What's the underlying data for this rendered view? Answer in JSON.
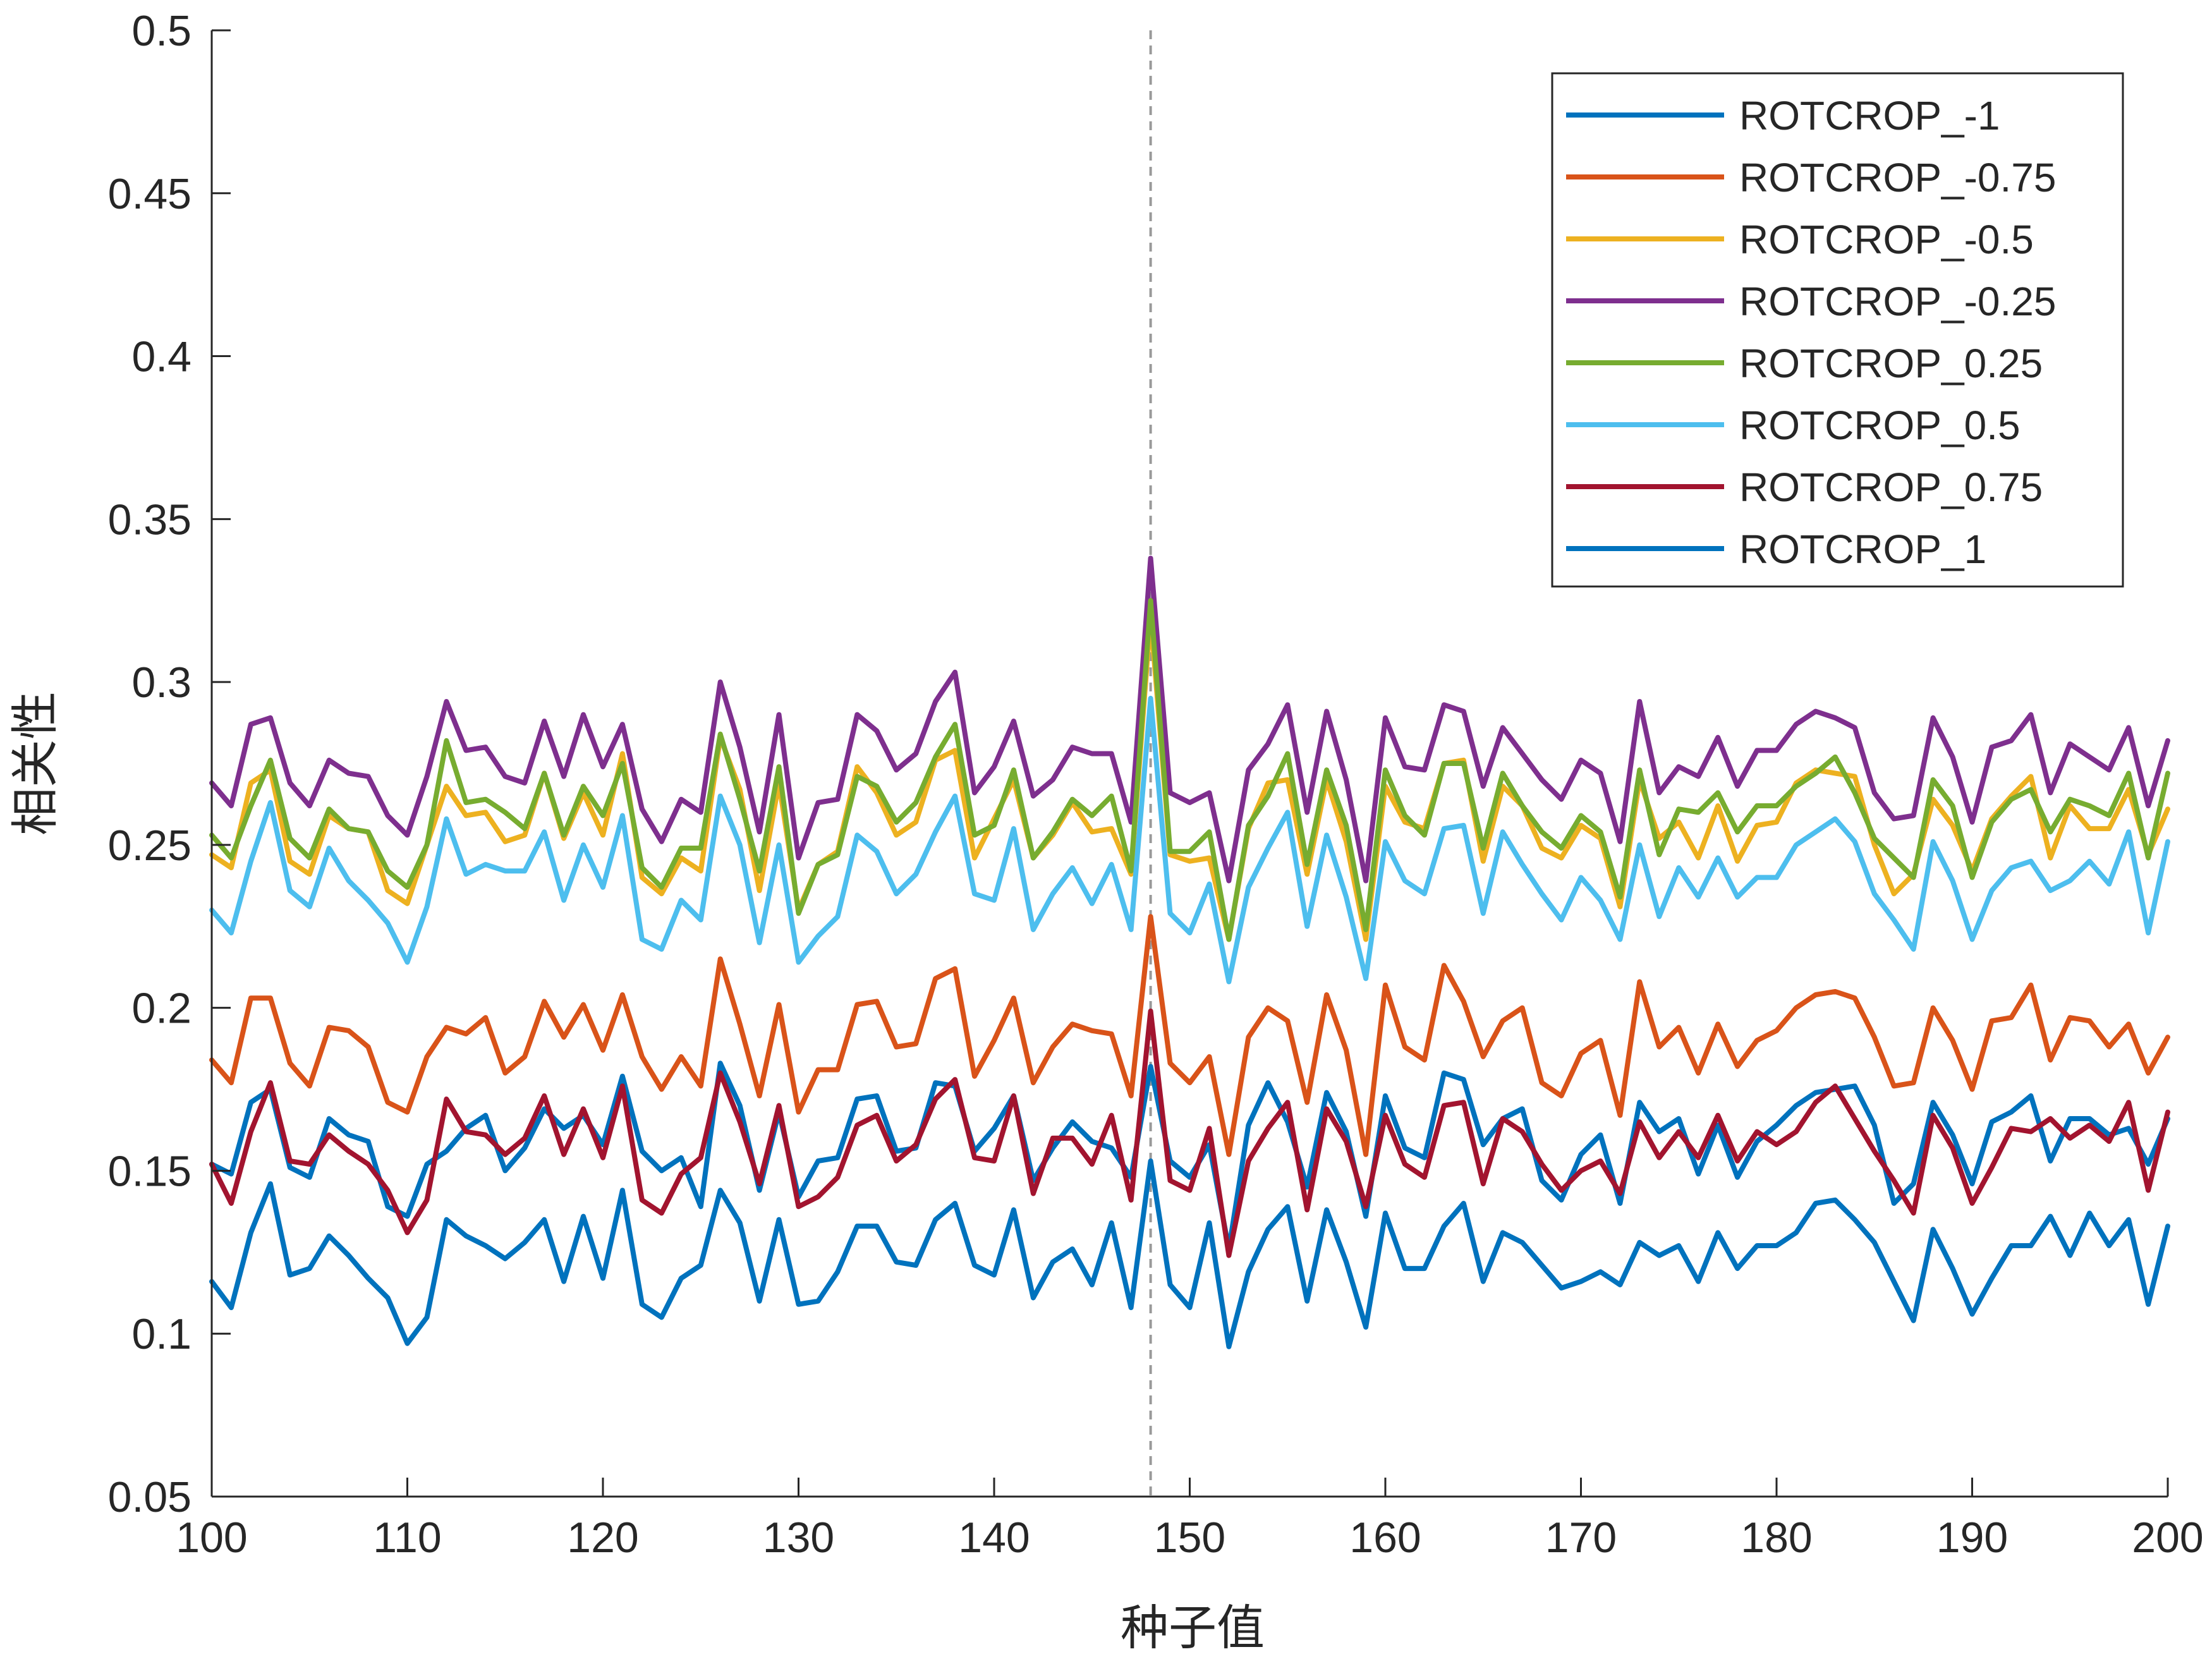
{
  "chart_data": {
    "type": "line",
    "title": "",
    "xlabel": "种子值",
    "ylabel": "相关性",
    "xlim": [
      100,
      200
    ],
    "ylim": [
      0.05,
      0.5
    ],
    "xticks": [
      100,
      110,
      120,
      130,
      140,
      150,
      160,
      170,
      180,
      190,
      200
    ],
    "xtick_labels": [
      "100",
      "110",
      "120",
      "130",
      "140",
      "150",
      "160",
      "170",
      "180",
      "190",
      "200"
    ],
    "yticks": [
      0.05,
      0.1,
      0.15,
      0.2,
      0.25,
      0.3,
      0.35,
      0.4,
      0.45,
      0.5
    ],
    "ytick_labels": [
      "0.05",
      "0.1",
      "0.15",
      "0.2",
      "0.25",
      "0.3",
      "0.35",
      "0.4",
      "0.45",
      "0.5"
    ],
    "grid": false,
    "legend_position": "top-right",
    "reference_line": {
      "x": 148,
      "style": "dashed",
      "color": "#999999"
    },
    "x": [
      100,
      101,
      102,
      103,
      104,
      105,
      106,
      107,
      108,
      109,
      110,
      111,
      112,
      113,
      114,
      115,
      116,
      117,
      118,
      119,
      120,
      121,
      122,
      123,
      124,
      125,
      126,
      127,
      128,
      129,
      130,
      131,
      132,
      133,
      134,
      135,
      136,
      137,
      138,
      139,
      140,
      141,
      142,
      143,
      144,
      145,
      146,
      147,
      148,
      149,
      150,
      151,
      152,
      153,
      154,
      155,
      156,
      157,
      158,
      159,
      160,
      161,
      162,
      163,
      164,
      165,
      166,
      167,
      168,
      169,
      170,
      171,
      172,
      173,
      174,
      175,
      176,
      177,
      178,
      179,
      180,
      181,
      182,
      183,
      184,
      185,
      186,
      187,
      188,
      189,
      190,
      191,
      192,
      193,
      194,
      195,
      196,
      197,
      198,
      199,
      200
    ],
    "series": [
      {
        "name": "ROTCROP_-1",
        "color": "#0072BD",
        "values": [
          0.152,
          0.149,
          0.171,
          0.175,
          0.151,
          0.148,
          0.166,
          0.161,
          0.159,
          0.139,
          0.136,
          0.152,
          0.156,
          0.163,
          0.167,
          0.15,
          0.157,
          0.169,
          0.163,
          0.167,
          0.158,
          0.179,
          0.156,
          0.15,
          0.154,
          0.139,
          0.183,
          0.17,
          0.144,
          0.168,
          0.142,
          0.153,
          0.154,
          0.172,
          0.173,
          0.156,
          0.157,
          0.177,
          0.176,
          0.156,
          0.163,
          0.173,
          0.147,
          0.157,
          0.165,
          0.159,
          0.157,
          0.148,
          0.182,
          0.153,
          0.148,
          0.158,
          0.126,
          0.164,
          0.177,
          0.165,
          0.145,
          0.174,
          0.162,
          0.136,
          0.173,
          0.157,
          0.154,
          0.18,
          0.178,
          0.158,
          0.166,
          0.169,
          0.147,
          0.141,
          0.155,
          0.161,
          0.14,
          0.171,
          0.162,
          0.166,
          0.149,
          0.164,
          0.148,
          0.159,
          0.164,
          0.17,
          0.174,
          0.175,
          0.176,
          0.164,
          0.14,
          0.146,
          0.171,
          0.161,
          0.146,
          0.165,
          0.168,
          0.173,
          0.153,
          0.166,
          0.166,
          0.161,
          0.163,
          0.152,
          0.166
        ]
      },
      {
        "name": "ROTCROP_-0.75",
        "color": "#D95319",
        "values": [
          0.184,
          0.177,
          0.203,
          0.203,
          0.183,
          0.176,
          0.194,
          0.193,
          0.188,
          0.171,
          0.168,
          0.185,
          0.194,
          0.192,
          0.197,
          0.18,
          0.185,
          0.202,
          0.191,
          0.201,
          0.187,
          0.204,
          0.185,
          0.175,
          0.185,
          0.176,
          0.215,
          0.195,
          0.173,
          0.201,
          0.168,
          0.181,
          0.181,
          0.201,
          0.202,
          0.188,
          0.189,
          0.209,
          0.212,
          0.179,
          0.19,
          0.203,
          0.177,
          0.188,
          0.195,
          0.193,
          0.192,
          0.173,
          0.228,
          0.183,
          0.177,
          0.185,
          0.155,
          0.191,
          0.2,
          0.196,
          0.171,
          0.204,
          0.187,
          0.155,
          0.207,
          0.188,
          0.184,
          0.213,
          0.202,
          0.185,
          0.196,
          0.2,
          0.177,
          0.173,
          0.186,
          0.19,
          0.167,
          0.208,
          0.188,
          0.194,
          0.18,
          0.195,
          0.182,
          0.19,
          0.193,
          0.2,
          0.204,
          0.205,
          0.203,
          0.191,
          0.176,
          0.177,
          0.2,
          0.19,
          0.175,
          0.196,
          0.197,
          0.207,
          0.184,
          0.197,
          0.196,
          0.188,
          0.195,
          0.18,
          0.191
        ]
      },
      {
        "name": "ROTCROP_-0.5",
        "color": "#EDB120",
        "values": [
          0.247,
          0.243,
          0.269,
          0.273,
          0.245,
          0.241,
          0.259,
          0.255,
          0.254,
          0.236,
          0.232,
          0.25,
          0.268,
          0.259,
          0.26,
          0.251,
          0.253,
          0.272,
          0.252,
          0.266,
          0.253,
          0.278,
          0.24,
          0.235,
          0.246,
          0.242,
          0.283,
          0.267,
          0.236,
          0.269,
          0.23,
          0.244,
          0.248,
          0.274,
          0.266,
          0.253,
          0.257,
          0.276,
          0.279,
          0.246,
          0.258,
          0.27,
          0.246,
          0.253,
          0.263,
          0.254,
          0.255,
          0.241,
          0.32,
          0.247,
          0.245,
          0.246,
          0.221,
          0.255,
          0.269,
          0.27,
          0.241,
          0.27,
          0.251,
          0.221,
          0.268,
          0.257,
          0.255,
          0.275,
          0.276,
          0.245,
          0.268,
          0.262,
          0.249,
          0.246,
          0.256,
          0.252,
          0.231,
          0.27,
          0.252,
          0.257,
          0.246,
          0.262,
          0.245,
          0.256,
          0.257,
          0.269,
          0.273,
          0.272,
          0.271,
          0.25,
          0.235,
          0.241,
          0.264,
          0.256,
          0.242,
          0.258,
          0.265,
          0.271,
          0.246,
          0.262,
          0.255,
          0.255,
          0.267,
          0.247,
          0.261
        ]
      },
      {
        "name": "ROTCROP_-0.25",
        "color": "#7E2F8E",
        "values": [
          0.269,
          0.262,
          0.287,
          0.289,
          0.269,
          0.262,
          0.276,
          0.272,
          0.271,
          0.259,
          0.253,
          0.271,
          0.294,
          0.279,
          0.28,
          0.271,
          0.269,
          0.288,
          0.271,
          0.29,
          0.274,
          0.287,
          0.261,
          0.251,
          0.264,
          0.26,
          0.3,
          0.28,
          0.254,
          0.29,
          0.246,
          0.263,
          0.264,
          0.29,
          0.285,
          0.273,
          0.278,
          0.294,
          0.303,
          0.266,
          0.274,
          0.288,
          0.265,
          0.27,
          0.28,
          0.278,
          0.278,
          0.257,
          0.338,
          0.266,
          0.263,
          0.266,
          0.239,
          0.273,
          0.281,
          0.293,
          0.26,
          0.291,
          0.27,
          0.239,
          0.289,
          0.274,
          0.273,
          0.293,
          0.291,
          0.268,
          0.286,
          0.278,
          0.27,
          0.264,
          0.276,
          0.272,
          0.251,
          0.294,
          0.266,
          0.274,
          0.271,
          0.283,
          0.268,
          0.279,
          0.279,
          0.287,
          0.291,
          0.289,
          0.286,
          0.266,
          0.258,
          0.259,
          0.289,
          0.277,
          0.257,
          0.28,
          0.282,
          0.29,
          0.266,
          0.281,
          0.277,
          0.273,
          0.286,
          0.262,
          0.282
        ]
      },
      {
        "name": "ROTCROP_0.25",
        "color": "#77AC30",
        "values": [
          0.253,
          0.246,
          0.262,
          0.276,
          0.252,
          0.246,
          0.261,
          0.255,
          0.254,
          0.242,
          0.237,
          0.25,
          0.282,
          0.263,
          0.264,
          0.26,
          0.255,
          0.272,
          0.253,
          0.268,
          0.259,
          0.275,
          0.243,
          0.237,
          0.249,
          0.249,
          0.284,
          0.264,
          0.242,
          0.274,
          0.229,
          0.244,
          0.247,
          0.271,
          0.268,
          0.257,
          0.263,
          0.277,
          0.287,
          0.253,
          0.256,
          0.273,
          0.246,
          0.254,
          0.264,
          0.259,
          0.265,
          0.242,
          0.325,
          0.248,
          0.248,
          0.254,
          0.221,
          0.256,
          0.265,
          0.278,
          0.244,
          0.273,
          0.256,
          0.224,
          0.273,
          0.259,
          0.253,
          0.275,
          0.275,
          0.249,
          0.272,
          0.262,
          0.254,
          0.249,
          0.259,
          0.254,
          0.234,
          0.273,
          0.247,
          0.261,
          0.26,
          0.266,
          0.254,
          0.262,
          0.262,
          0.268,
          0.272,
          0.277,
          0.266,
          0.252,
          0.246,
          0.24,
          0.27,
          0.262,
          0.24,
          0.257,
          0.264,
          0.267,
          0.254,
          0.264,
          0.262,
          0.259,
          0.272,
          0.246,
          0.272
        ]
      },
      {
        "name": "ROTCROP_0.5",
        "color": "#4DBEEE",
        "values": [
          0.23,
          0.223,
          0.245,
          0.263,
          0.236,
          0.231,
          0.249,
          0.239,
          0.233,
          0.226,
          0.214,
          0.231,
          0.258,
          0.241,
          0.244,
          0.242,
          0.242,
          0.254,
          0.233,
          0.25,
          0.237,
          0.259,
          0.221,
          0.218,
          0.233,
          0.227,
          0.265,
          0.25,
          0.22,
          0.25,
          0.214,
          0.222,
          0.228,
          0.253,
          0.248,
          0.235,
          0.241,
          0.254,
          0.265,
          0.235,
          0.233,
          0.255,
          0.224,
          0.235,
          0.243,
          0.232,
          0.244,
          0.224,
          0.295,
          0.229,
          0.223,
          0.238,
          0.208,
          0.237,
          0.249,
          0.26,
          0.225,
          0.253,
          0.234,
          0.209,
          0.251,
          0.239,
          0.235,
          0.255,
          0.256,
          0.229,
          0.254,
          0.244,
          0.235,
          0.227,
          0.24,
          0.233,
          0.221,
          0.25,
          0.228,
          0.243,
          0.234,
          0.246,
          0.234,
          0.24,
          0.24,
          0.25,
          0.254,
          0.258,
          0.251,
          0.235,
          0.227,
          0.218,
          0.251,
          0.239,
          0.221,
          0.236,
          0.243,
          0.245,
          0.236,
          0.239,
          0.245,
          0.238,
          0.254,
          0.223,
          0.251
        ]
      },
      {
        "name": "ROTCROP_0.75",
        "color": "#A2142F",
        "values": [
          0.152,
          0.14,
          0.162,
          0.177,
          0.153,
          0.152,
          0.161,
          0.156,
          0.152,
          0.144,
          0.131,
          0.141,
          0.172,
          0.162,
          0.161,
          0.155,
          0.16,
          0.173,
          0.155,
          0.169,
          0.154,
          0.176,
          0.141,
          0.137,
          0.149,
          0.154,
          0.18,
          0.165,
          0.146,
          0.17,
          0.139,
          0.142,
          0.148,
          0.164,
          0.167,
          0.153,
          0.158,
          0.172,
          0.178,
          0.154,
          0.153,
          0.173,
          0.143,
          0.16,
          0.16,
          0.152,
          0.167,
          0.141,
          0.199,
          0.147,
          0.144,
          0.163,
          0.124,
          0.153,
          0.163,
          0.171,
          0.138,
          0.169,
          0.159,
          0.139,
          0.167,
          0.152,
          0.148,
          0.17,
          0.171,
          0.146,
          0.166,
          0.162,
          0.152,
          0.144,
          0.15,
          0.153,
          0.143,
          0.165,
          0.154,
          0.162,
          0.154,
          0.167,
          0.153,
          0.162,
          0.158,
          0.162,
          0.171,
          0.176,
          0.166,
          0.156,
          0.147,
          0.137,
          0.167,
          0.157,
          0.14,
          0.151,
          0.163,
          0.162,
          0.166,
          0.16,
          0.164,
          0.159,
          0.171,
          0.144,
          0.168
        ]
      },
      {
        "name": "ROTCROP_1",
        "color": "#0072BD",
        "values": [
          0.116,
          0.108,
          0.131,
          0.146,
          0.118,
          0.12,
          0.13,
          0.124,
          0.117,
          0.111,
          0.097,
          0.105,
          0.135,
          0.13,
          0.127,
          0.123,
          0.128,
          0.135,
          0.116,
          0.136,
          0.117,
          0.144,
          0.109,
          0.105,
          0.117,
          0.121,
          0.144,
          0.134,
          0.11,
          0.135,
          0.109,
          0.11,
          0.119,
          0.133,
          0.133,
          0.122,
          0.121,
          0.135,
          0.14,
          0.121,
          0.118,
          0.138,
          0.111,
          0.122,
          0.126,
          0.115,
          0.134,
          0.108,
          0.153,
          0.115,
          0.108,
          0.134,
          0.096,
          0.119,
          0.132,
          0.139,
          0.11,
          0.138,
          0.122,
          0.102,
          0.137,
          0.12,
          0.12,
          0.133,
          0.14,
          0.116,
          0.131,
          0.128,
          0.121,
          0.114,
          0.116,
          0.119,
          0.115,
          0.128,
          0.124,
          0.127,
          0.116,
          0.131,
          0.12,
          0.127,
          0.127,
          0.131,
          0.14,
          0.141,
          0.135,
          0.128,
          0.116,
          0.104,
          0.132,
          0.12,
          0.106,
          0.117,
          0.127,
          0.127,
          0.136,
          0.124,
          0.137,
          0.127,
          0.135,
          0.109,
          0.133
        ]
      }
    ]
  }
}
